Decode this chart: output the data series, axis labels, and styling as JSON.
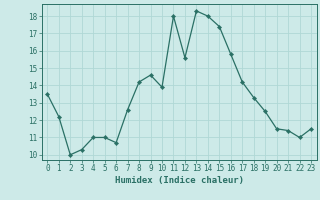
{
  "x": [
    0,
    1,
    2,
    3,
    4,
    5,
    6,
    7,
    8,
    9,
    10,
    11,
    12,
    13,
    14,
    15,
    16,
    17,
    18,
    19,
    20,
    21,
    22,
    23
  ],
  "y": [
    13.5,
    12.2,
    10.0,
    10.3,
    11.0,
    11.0,
    10.7,
    12.6,
    14.2,
    14.6,
    13.9,
    18.0,
    15.6,
    18.3,
    18.0,
    17.4,
    15.8,
    14.2,
    13.3,
    12.5,
    11.5,
    11.4,
    11.0,
    11.5
  ],
  "line_color": "#2a7065",
  "marker": "D",
  "marker_size": 2.2,
  "bg_color": "#cdeae8",
  "grid_color": "#b0d8d5",
  "xlabel": "Humidex (Indice chaleur)",
  "ylim": [
    9.7,
    18.7
  ],
  "xlim": [
    -0.5,
    23.5
  ],
  "yticks": [
    10,
    11,
    12,
    13,
    14,
    15,
    16,
    17,
    18
  ],
  "xticks": [
    0,
    1,
    2,
    3,
    4,
    5,
    6,
    7,
    8,
    9,
    10,
    11,
    12,
    13,
    14,
    15,
    16,
    17,
    18,
    19,
    20,
    21,
    22,
    23
  ],
  "tick_fontsize": 5.5,
  "xlabel_fontsize": 6.5,
  "axis_color": "#2a7065"
}
